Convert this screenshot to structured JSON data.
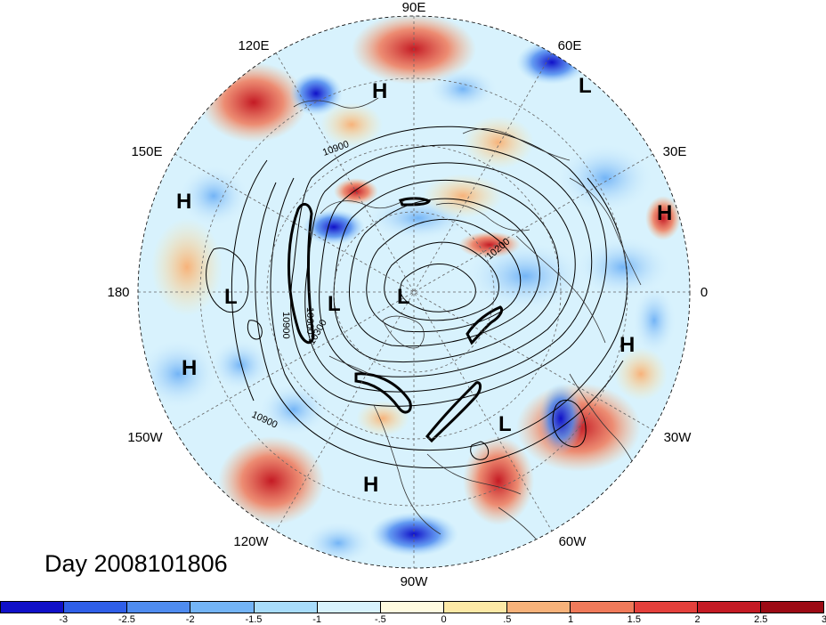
{
  "longitude_labels": [
    "90E",
    "60E",
    "30E",
    "0",
    "30W",
    "60W",
    "90W",
    "120W",
    "150W",
    "180",
    "150E",
    "120E"
  ],
  "pressure_systems": [
    {
      "label": "H",
      "lon_lat": "",
      "id": "h1"
    },
    {
      "label": "L",
      "id": "l1"
    },
    {
      "label": "H",
      "id": "h2"
    },
    {
      "label": "H",
      "id": "h3"
    },
    {
      "label": "L",
      "id": "l2"
    },
    {
      "label": "L",
      "id": "l3"
    },
    {
      "label": "L",
      "id": "l4"
    },
    {
      "label": "H",
      "id": "h4"
    },
    {
      "label": "H",
      "id": "h5"
    },
    {
      "label": "L",
      "id": "l5"
    },
    {
      "label": "H",
      "id": "h6"
    }
  ],
  "contour_labels": [
    "10900",
    "10200",
    "10900",
    "10300",
    "10600",
    "10900"
  ],
  "date_label": "Day 2008101806",
  "colorbar": {
    "colors": [
      "#1010c8",
      "#2f5fe8",
      "#4f8cf0",
      "#73b4f6",
      "#a8dcfb",
      "#d8f2fd",
      "#fffbe0",
      "#fde9a6",
      "#f7b27a",
      "#f07a5a",
      "#e4403c",
      "#c41a24",
      "#9c0a14"
    ],
    "ticks": [
      "-3",
      "-2.5",
      "-2",
      "-1.5",
      "-1",
      "-.5",
      "0",
      ".5",
      "1",
      "1.5",
      "2",
      "2.5",
      "3"
    ]
  }
}
